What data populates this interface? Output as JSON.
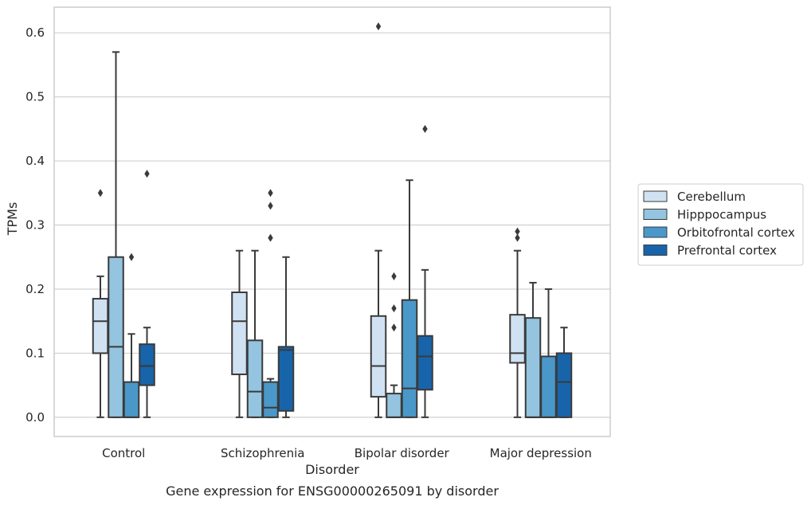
{
  "chart_data": {
    "type": "box",
    "title": "",
    "caption": "Gene expression for ENSG00000265091 by disorder",
    "xlabel": "Disorder",
    "ylabel": "TPMs",
    "ylim": [
      -0.03,
      0.64
    ],
    "yticks": [
      0.0,
      0.1,
      0.2,
      0.3,
      0.4,
      0.5,
      0.6
    ],
    "ytick_labels": [
      "0.0",
      "0.1",
      "0.2",
      "0.3",
      "0.4",
      "0.5",
      "0.6"
    ],
    "grid": "horizontal",
    "legend_placement": "right",
    "categories": [
      "Control",
      "Schizophrenia",
      "Bipolar disorder",
      "Major depression"
    ],
    "series": [
      {
        "name": "Cerebellum",
        "color": "#d0e1f2",
        "boxes": [
          {
            "whisker_low": 0.0,
            "q1": 0.1,
            "median": 0.15,
            "q3": 0.185,
            "whisker_high": 0.22,
            "outliers": [
              0.35
            ]
          },
          {
            "whisker_low": 0.0,
            "q1": 0.067,
            "median": 0.15,
            "q3": 0.195,
            "whisker_high": 0.26,
            "outliers": []
          },
          {
            "whisker_low": 0.0,
            "q1": 0.032,
            "median": 0.08,
            "q3": 0.158,
            "whisker_high": 0.26,
            "outliers": [
              0.61
            ]
          },
          {
            "whisker_low": 0.0,
            "q1": 0.085,
            "median": 0.1,
            "q3": 0.16,
            "whisker_high": 0.26,
            "outliers": [
              0.28,
              0.29
            ]
          }
        ]
      },
      {
        "name": "Hipppocampus",
        "color": "#94c4df",
        "boxes": [
          {
            "whisker_low": 0.0,
            "q1": 0.0,
            "median": 0.11,
            "q3": 0.25,
            "whisker_high": 0.57,
            "outliers": []
          },
          {
            "whisker_low": 0.0,
            "q1": 0.0,
            "median": 0.04,
            "q3": 0.12,
            "whisker_high": 0.26,
            "outliers": []
          },
          {
            "whisker_low": 0.0,
            "q1": 0.0,
            "median": 0.0,
            "q3": 0.037,
            "whisker_high": 0.05,
            "outliers": [
              0.14,
              0.17,
              0.22
            ]
          },
          {
            "whisker_low": 0.0,
            "q1": 0.0,
            "median": 0.0,
            "q3": 0.155,
            "whisker_high": 0.21,
            "outliers": []
          }
        ]
      },
      {
        "name": "Orbitofrontal cortex",
        "color": "#4a98c9",
        "boxes": [
          {
            "whisker_low": 0.0,
            "q1": 0.0,
            "median": 0.0,
            "q3": 0.055,
            "whisker_high": 0.13,
            "outliers": [
              0.25
            ]
          },
          {
            "whisker_low": 0.0,
            "q1": 0.0,
            "median": 0.015,
            "q3": 0.055,
            "whisker_high": 0.06,
            "outliers": [
              0.28,
              0.33,
              0.35
            ]
          },
          {
            "whisker_low": 0.0,
            "q1": 0.0,
            "median": 0.045,
            "q3": 0.183,
            "whisker_high": 0.37,
            "outliers": []
          },
          {
            "whisker_low": 0.0,
            "q1": 0.0,
            "median": 0.0,
            "q3": 0.095,
            "whisker_high": 0.2,
            "outliers": []
          }
        ]
      },
      {
        "name": "Prefrontal cortex",
        "color": "#1764ab",
        "boxes": [
          {
            "whisker_low": 0.0,
            "q1": 0.05,
            "median": 0.08,
            "q3": 0.114,
            "whisker_high": 0.14,
            "outliers": [
              0.38
            ]
          },
          {
            "whisker_low": 0.0,
            "q1": 0.01,
            "median": 0.105,
            "q3": 0.11,
            "whisker_high": 0.25,
            "outliers": []
          },
          {
            "whisker_low": 0.0,
            "q1": 0.043,
            "median": 0.095,
            "q3": 0.127,
            "whisker_high": 0.23,
            "outliers": [
              0.45
            ]
          },
          {
            "whisker_low": 0.0,
            "q1": 0.0,
            "median": 0.055,
            "q3": 0.1,
            "whisker_high": 0.14,
            "outliers": []
          }
        ]
      }
    ]
  }
}
